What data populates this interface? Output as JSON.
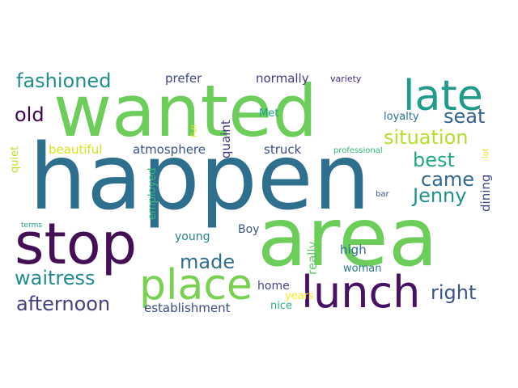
{
  "words": [
    {
      "text": "happen",
      "color": "#2f6f8e"
    },
    {
      "text": "wanted",
      "color": "#6ccd5a"
    },
    {
      "text": "area",
      "color": "#6ccd5a"
    },
    {
      "text": "stop",
      "color": "#440f57"
    },
    {
      "text": "lunch",
      "color": "#471264"
    },
    {
      "text": "place",
      "color": "#7ad151"
    },
    {
      "text": "late",
      "color": "#1e9b8a"
    },
    {
      "text": "situation",
      "color": "#b5de2b"
    },
    {
      "text": "fashioned",
      "color": "#218f8d"
    },
    {
      "text": "Jenny",
      "color": "#20938c"
    },
    {
      "text": "afternoon",
      "color": "#433e85"
    },
    {
      "text": "waitress",
      "color": "#238a8d"
    },
    {
      "text": "made",
      "color": "#2e6e8e"
    },
    {
      "text": "right",
      "color": "#3b528b"
    },
    {
      "text": "best",
      "color": "#22a785"
    },
    {
      "text": "seat",
      "color": "#34618d"
    },
    {
      "text": "came",
      "color": "#31678e"
    },
    {
      "text": "old",
      "color": "#440154"
    },
    {
      "text": "establishment",
      "color": "#3e4a89"
    },
    {
      "text": "prefer",
      "color": "#404688"
    },
    {
      "text": "normally",
      "color": "#443983"
    },
    {
      "text": "beautiful",
      "color": "#d8e219"
    },
    {
      "text": "atmosphere",
      "color": "#3b528b"
    },
    {
      "text": "struck",
      "color": "#3e4c8a"
    },
    {
      "text": "quaint",
      "color": "#46337f"
    },
    {
      "text": "employed",
      "color": "#35b779"
    },
    {
      "text": "quiet",
      "color": "#c2df23"
    },
    {
      "text": "Full",
      "color": "#fde725"
    },
    {
      "text": "Met",
      "color": "#1fa187"
    },
    {
      "text": "loyalty",
      "color": "#2c718e"
    },
    {
      "text": "variety",
      "color": "#472c7a"
    },
    {
      "text": "professional",
      "color": "#35b779"
    },
    {
      "text": "lot",
      "color": "#e5e419"
    },
    {
      "text": "dining",
      "color": "#3f4788"
    },
    {
      "text": "bar",
      "color": "#3b528b"
    },
    {
      "text": "young",
      "color": "#26828e"
    },
    {
      "text": "Boy",
      "color": "#3b528b"
    },
    {
      "text": "really",
      "color": "#5ec962"
    },
    {
      "text": "high",
      "color": "#2f6b8e"
    },
    {
      "text": "woman",
      "color": "#2a788e"
    },
    {
      "text": "home",
      "color": "#404387"
    },
    {
      "text": "years",
      "color": "#fde725"
    },
    {
      "text": "nice",
      "color": "#29af7f"
    },
    {
      "text": "terms",
      "color": "#1f9e89"
    }
  ]
}
